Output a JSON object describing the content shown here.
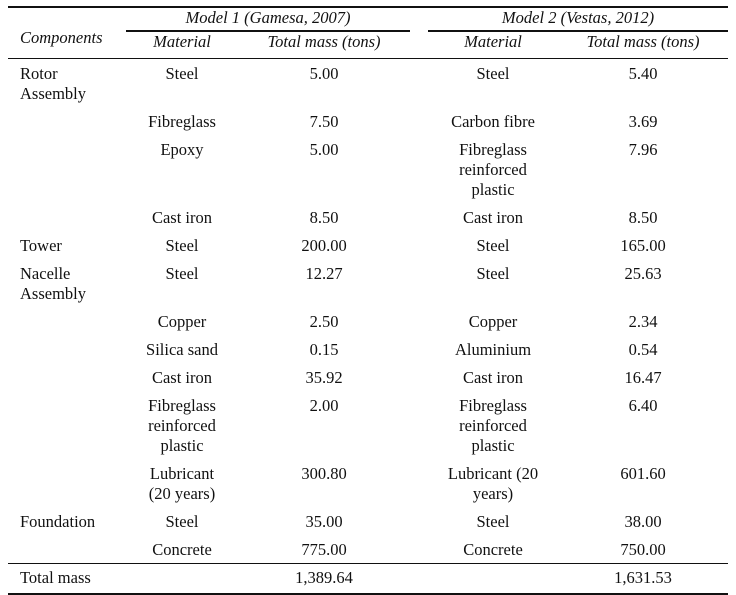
{
  "header": {
    "components": "Components",
    "model1": "Model 1 (Gamesa, 2007)",
    "model2": "Model 2 (Vestas, 2012)",
    "material": "Material",
    "mass": "Total mass (tons)"
  },
  "rows": [
    {
      "comp": "Rotor Assembly",
      "m1": "Steel",
      "v1": "5.00",
      "m2": "Steel",
      "v2": "5.40"
    },
    {
      "comp": "",
      "m1": "Fibreglass",
      "v1": "7.50",
      "m2": "Carbon fibre",
      "v2": "3.69"
    },
    {
      "comp": "",
      "m1": "Epoxy",
      "v1": "5.00",
      "m2": "Fibreglass reinforced plastic",
      "v2": "7.96"
    },
    {
      "comp": "",
      "m1": "Cast iron",
      "v1": "8.50",
      "m2": "Cast iron",
      "v2": "8.50"
    },
    {
      "comp": "Tower",
      "m1": "Steel",
      "v1": "200.00",
      "m2": "Steel",
      "v2": "165.00"
    },
    {
      "comp": "Nacelle Assembly",
      "m1": "Steel",
      "v1": "12.27",
      "m2": "Steel",
      "v2": "25.63"
    },
    {
      "comp": "",
      "m1": "Copper",
      "v1": "2.50",
      "m2": "Copper",
      "v2": "2.34"
    },
    {
      "comp": "",
      "m1": "Silica sand",
      "v1": "0.15",
      "m2": "Aluminium",
      "v2": "0.54"
    },
    {
      "comp": "",
      "m1": "Cast iron",
      "v1": "35.92",
      "m2": "Cast iron",
      "v2": "16.47"
    },
    {
      "comp": "",
      "m1": "Fibreglass reinforced plastic",
      "v1": "2.00",
      "m2": "Fibreglass reinforced plastic",
      "v2": "6.40"
    },
    {
      "comp": "",
      "m1": "Lubricant (20 years)",
      "v1": "300.80",
      "m2": "Lubricant (20 years)",
      "v2": "601.60"
    },
    {
      "comp": "Foundation",
      "m1": "Steel",
      "v1": "35.00",
      "m2": "Steel",
      "v2": "38.00"
    },
    {
      "comp": "",
      "m1": "Concrete",
      "v1": "775.00",
      "m2": "Concrete",
      "v2": "750.00"
    }
  ],
  "total": {
    "label": "Total mass",
    "v1": "1,389.64",
    "v2": "1,631.53"
  }
}
